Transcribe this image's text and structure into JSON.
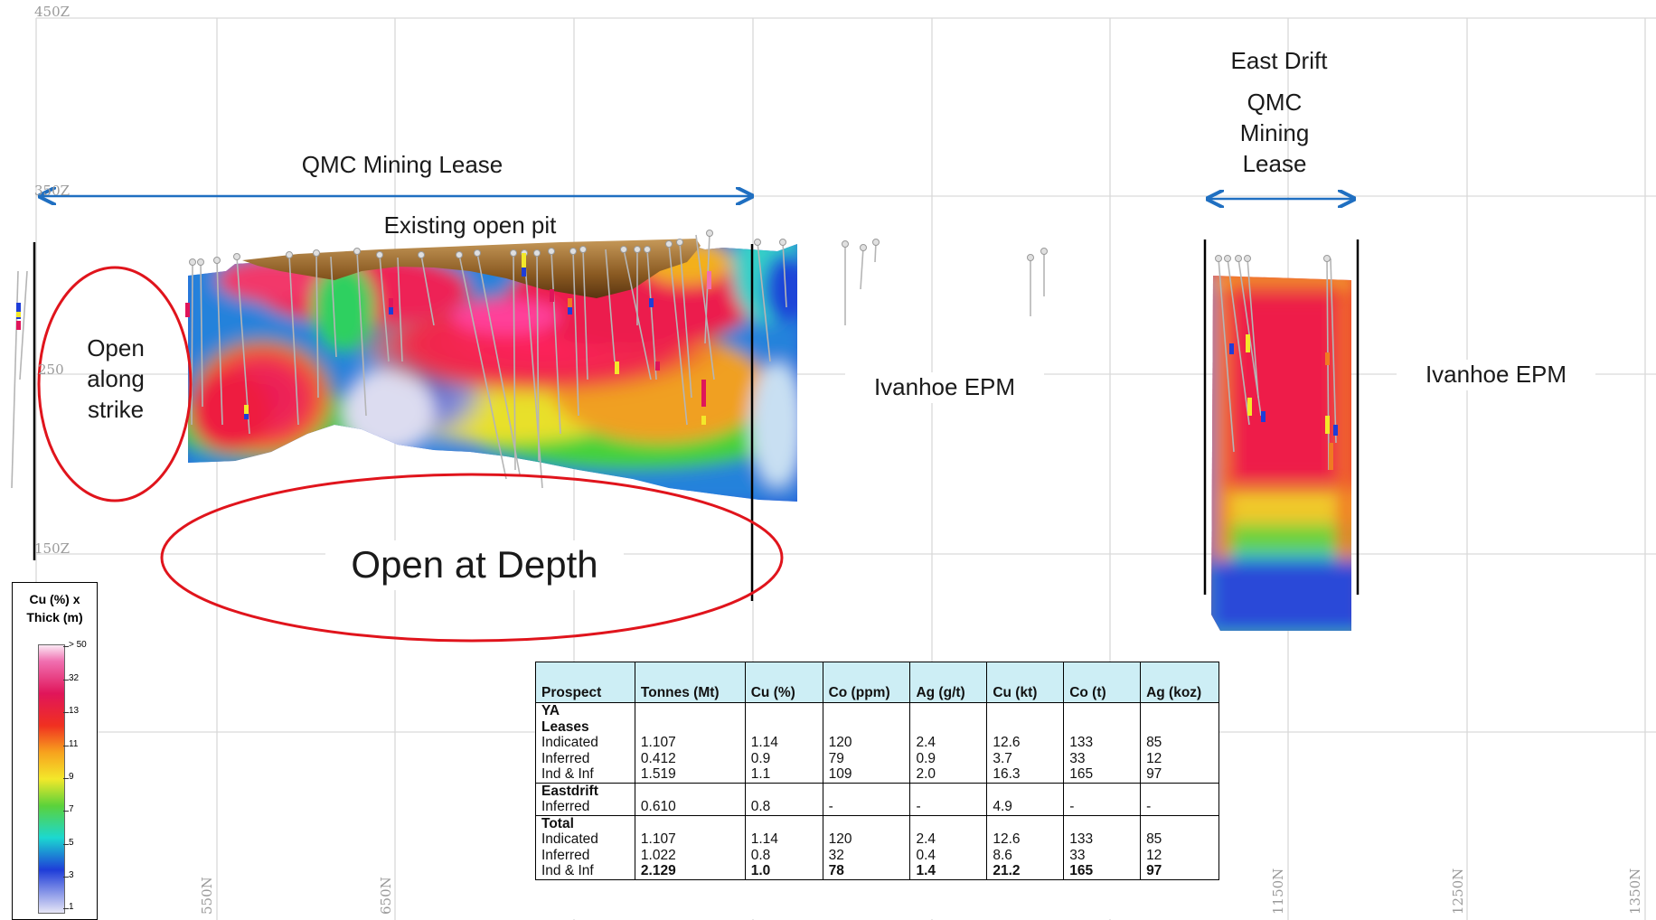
{
  "grid_labels": {
    "elevations": [
      "450Z",
      "350Z",
      "250",
      "150Z"
    ],
    "northings": [
      "550N",
      "650N",
      "1150N",
      "1250N",
      "1350N"
    ]
  },
  "annotations": {
    "qmc_lease_main": "QMC Mining Lease",
    "existing_pit": "Existing open pit",
    "east_drift": "East Drift",
    "qmc_lease_east": [
      "QMC",
      "Mining",
      "Lease"
    ],
    "open_strike": [
      "Open",
      "along",
      "strike"
    ],
    "open_depth": "Open at Depth",
    "ivanhoe_1": "Ivanhoe EPM",
    "ivanhoe_2": "Ivanhoe EPM"
  },
  "colors": {
    "arrow": "#1f6fc1",
    "ellipse": "#e0141c",
    "table_header": "#cdeef5"
  },
  "legend": {
    "title_line1": "Cu (%) x",
    "title_line2": "Thick (m)",
    "ticks": [
      "> 50",
      "32",
      "13",
      "11",
      "9",
      "7",
      "5",
      "3",
      "1"
    ]
  },
  "table": {
    "headers": [
      "Prospect",
      "Tonnes (Mt)",
      "Cu (%)",
      "Co (ppm)",
      "Ag (g/t)",
      "Cu (kt)",
      "Co (t)",
      "Ag (koz)"
    ],
    "groups": [
      {
        "name": [
          "YA",
          "Leases"
        ],
        "rows": [
          [
            "Indicated",
            "1.107",
            "1.14",
            "120",
            "2.4",
            "12.6",
            "133",
            "85"
          ],
          [
            "Inferred",
            "0.412",
            "0.9",
            "79",
            "0.9",
            "3.7",
            "33",
            "12"
          ],
          [
            "Ind & Inf",
            "1.519",
            "1.1",
            "109",
            "2.0",
            "16.3",
            "165",
            "97"
          ]
        ]
      },
      {
        "name": [
          "Eastdrift"
        ],
        "rows": [
          [
            "Inferred",
            "0.610",
            "0.8",
            "-",
            "-",
            "4.9",
            "-",
            "-"
          ]
        ]
      },
      {
        "name": [
          "Total"
        ],
        "rows": [
          [
            "Indicated",
            "1.107",
            "1.14",
            "120",
            "2.4",
            "12.6",
            "133",
            "85"
          ],
          [
            "Inferred",
            "1.022",
            "0.8",
            "32",
            "0.4",
            "8.6",
            "33",
            "12"
          ],
          [
            "Ind & Inf",
            "2.129",
            "1.0",
            "78",
            "1.4",
            "21.2",
            "165",
            "97"
          ]
        ]
      }
    ]
  }
}
